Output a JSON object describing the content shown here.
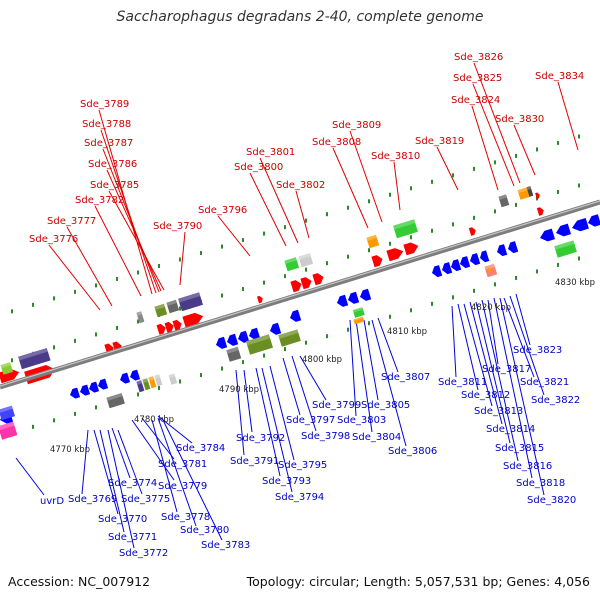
{
  "title": "Saccharophagus degradans 2-40, complete genome",
  "footer": {
    "accession": "Accession: NC_007912",
    "summary": "Topology: circular; Length: 5,057,531 bp; Genes: 4,056"
  },
  "colors": {
    "top_label": "#cc0000",
    "bottom_label": "#0000cc",
    "backbone": "#8a8a8a",
    "tick": "#228822",
    "forward_gene": "#ff0000",
    "reverse_gene": "#0000ff"
  },
  "coordinates": [
    "4770 kbp",
    "4780 kbp",
    "4790 kbp",
    "4800 kbp",
    "4810 kbp",
    "4820 kbp",
    "4830 kbp"
  ],
  "top_labels": [
    "Sde_3789",
    "Sde_3788",
    "Sde_3787",
    "Sde_3786",
    "Sde_3785",
    "Sde_3782",
    "Sde_3777",
    "Sde_3776",
    "Sde_3790",
    "Sde_3796",
    "Sde_3801",
    "Sde_3800",
    "Sde_3802",
    "Sde_3809",
    "Sde_3808",
    "Sde_3810",
    "Sde_3819",
    "Sde_3826",
    "Sde_3825",
    "Sde_3824",
    "Sde_3830",
    "Sde_3834"
  ],
  "bottom_labels": [
    "uvrD",
    "Sde_3769",
    "Sde_3770",
    "Sde_3771",
    "Sde_3772",
    "Sde_3774",
    "Sde_3775",
    "Sde_3778",
    "Sde_3780",
    "Sde_3783",
    "Sde_3779",
    "Sde_3781",
    "Sde_3784",
    "Sde_3791",
    "Sde_3792",
    "Sde_3793",
    "Sde_3794",
    "Sde_3795",
    "Sde_3797",
    "Sde_3798",
    "Sde_3799",
    "Sde_3803",
    "Sde_3804",
    "Sde_3805",
    "Sde_3806",
    "Sde_3807",
    "Sde_3811",
    "Sde_3812",
    "Sde_3813",
    "Sde_3814",
    "Sde_3815",
    "Sde_3816",
    "Sde_3817",
    "Sde_3818",
    "Sde_3820",
    "Sde_3821",
    "Sde_3822",
    "Sde_3823"
  ]
}
